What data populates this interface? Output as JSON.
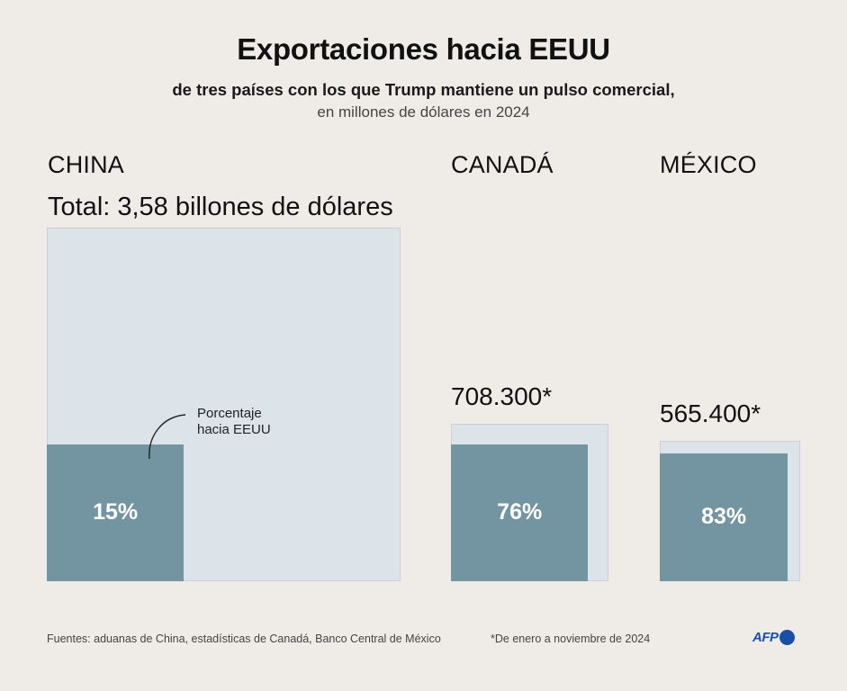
{
  "header": {
    "title": "Exportaciones hacia EEUU",
    "subtitle": "de tres países con los que Trump mantiene un pulso comercial,",
    "subtitle2": "en millones de dólares en 2024"
  },
  "annotation": {
    "line1": "Porcentaje",
    "line2": "hacia EEUU"
  },
  "footer": {
    "sources": "Fuentes: aduanas de China, estadísticas de Canadá, Banco Central de México",
    "note": "*De enero a noviembre de 2024",
    "logo": "AFP"
  },
  "colors": {
    "background": "#efece8",
    "total_box": "#dce3e9",
    "us_share_box": "#7395a1",
    "logo": "#1a4fa6"
  },
  "chart_data": {
    "type": "area-proportional squares",
    "title": "Exportaciones hacia EEUU",
    "subtitle": "de tres países con los que Trump mantiene un pulso comercial, en millones de dólares en 2024",
    "unit": "millones de dólares",
    "series": [
      {
        "name": "CHINA",
        "total_label": "Total:  3,58 billones de dólares",
        "total_musd": 3580000,
        "share_to_us_pct": 15,
        "share_label": "15%"
      },
      {
        "name": "CANADÁ",
        "total_label": "708.300*",
        "total_musd": 708300,
        "share_to_us_pct": 76,
        "share_label": "76%"
      },
      {
        "name": "MÉXICO",
        "total_label": "565.400*",
        "total_musd": 565400,
        "share_to_us_pct": 83,
        "share_label": "83%"
      }
    ],
    "legend": "Porcentaje hacia EEUU",
    "footnote": "*De enero a noviembre de 2024"
  }
}
